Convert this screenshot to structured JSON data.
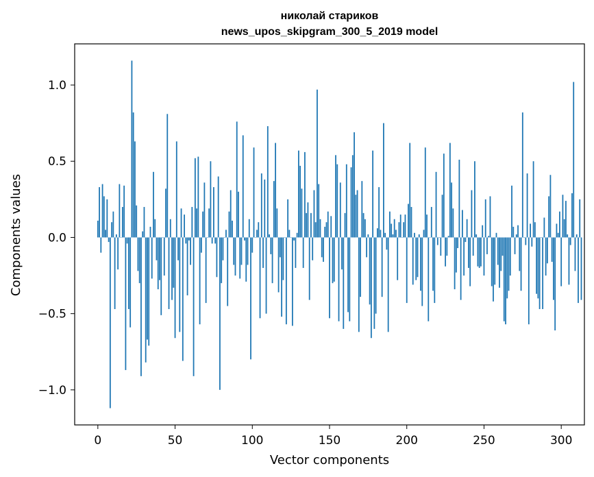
{
  "chart_data": {
    "type": "bar",
    "title": "николай стариков",
    "subtitle": "news_upos_skipgram_300_5_2019 model",
    "xlabel": "Vector components",
    "ylabel": "Components values",
    "xlim": [
      -15,
      315
    ],
    "ylim": [
      -1.23,
      1.27
    ],
    "xticks": [
      0,
      50,
      100,
      150,
      200,
      250,
      300
    ],
    "xtick_labels": [
      "0",
      "50",
      "100",
      "150",
      "200",
      "250",
      "300"
    ],
    "yticks": [
      -1.0,
      -0.5,
      0.0,
      0.5,
      1.0
    ],
    "ytick_labels": [
      "−1.0",
      "−0.5",
      "0.0",
      "0.5",
      "1.0"
    ],
    "grid": false,
    "bar_color": "#1f77b4",
    "values": [
      0.11,
      0.33,
      -0.1,
      0.35,
      0.27,
      0.05,
      0.25,
      -0.03,
      -1.12,
      0.1,
      0.17,
      -0.47,
      0.02,
      -0.21,
      0.35,
      0.0,
      0.2,
      0.34,
      -0.87,
      -0.04,
      -0.47,
      -0.59,
      1.16,
      0.82,
      0.63,
      0.21,
      -0.22,
      -0.3,
      -0.91,
      0.04,
      0.2,
      -0.82,
      -0.67,
      -0.71,
      0.07,
      -0.27,
      0.43,
      0.12,
      -0.15,
      -0.34,
      -0.28,
      -0.51,
      0.0,
      -0.25,
      0.32,
      0.81,
      -0.47,
      0.12,
      -0.41,
      -0.33,
      -0.66,
      0.63,
      -0.15,
      -0.62,
      0.19,
      -0.81,
      0.15,
      -0.04,
      -0.38,
      -0.02,
      -0.18,
      0.2,
      -0.91,
      0.52,
      0.19,
      0.53,
      -0.57,
      -0.1,
      0.17,
      0.36,
      -0.43,
      0.0,
      0.19,
      0.5,
      -0.04,
      0.33,
      -0.04,
      -0.26,
      0.4,
      -1.0,
      -0.3,
      -0.15,
      0.0,
      0.05,
      -0.45,
      0.17,
      0.31,
      0.11,
      -0.18,
      -0.25,
      0.76,
      0.3,
      -0.27,
      -0.18,
      0.67,
      -0.02,
      -0.29,
      -0.18,
      0.12,
      -0.8,
      -0.1,
      0.59,
      0.0,
      0.05,
      0.1,
      -0.53,
      0.42,
      -0.2,
      0.38,
      -0.5,
      0.73,
      0.02,
      -0.11,
      -0.3,
      0.37,
      0.62,
      0.19,
      -0.36,
      -0.13,
      -0.52,
      -0.28,
      0.0,
      -0.57,
      0.25,
      0.05,
      0.0,
      -0.58,
      -0.02,
      -0.2,
      0.03,
      0.57,
      0.47,
      0.32,
      -0.2,
      0.56,
      0.16,
      0.23,
      -0.41,
      0.16,
      -0.15,
      0.31,
      0.1,
      0.97,
      0.35,
      0.12,
      -0.13,
      -0.16,
      0.07,
      0.1,
      0.17,
      -0.53,
      0.14,
      -0.3,
      -0.29,
      0.54,
      0.48,
      -0.55,
      0.36,
      -0.21,
      -0.6,
      0.16,
      0.48,
      -0.49,
      -0.55,
      0.46,
      0.54,
      0.69,
      0.28,
      0.31,
      -0.62,
      -0.39,
      0.37,
      0.16,
      0.12,
      -0.13,
      0.02,
      -0.44,
      -0.66,
      0.57,
      -0.6,
      -0.5,
      0.06,
      0.33,
      0.05,
      -0.39,
      0.75,
      0.03,
      -0.08,
      -0.62,
      0.17,
      0.09,
      0.02,
      0.12,
      0.05,
      -0.28,
      0.1,
      0.15,
      0.0,
      0.1,
      0.15,
      -0.43,
      0.22,
      0.62,
      0.2,
      -0.31,
      0.03,
      -0.28,
      -0.26,
      0.02,
      -0.35,
      -0.45,
      0.05,
      0.59,
      0.15,
      -0.55,
      0.0,
      0.2,
      -0.35,
      -0.43,
      0.43,
      -0.05,
      0.0,
      -0.12,
      0.28,
      0.55,
      -0.19,
      -0.12,
      0.01,
      0.62,
      0.36,
      0.19,
      -0.34,
      -0.23,
      -0.07,
      0.51,
      -0.41,
      0.18,
      -0.25,
      -0.03,
      0.12,
      -0.2,
      -0.32,
      0.31,
      -0.12,
      0.5,
      0.02,
      -0.19,
      -0.2,
      -0.19,
      0.08,
      -0.25,
      0.25,
      -0.11,
      0.01,
      0.27,
      -0.32,
      -0.42,
      -0.31,
      0.03,
      -0.18,
      -0.33,
      -0.22,
      -0.12,
      -0.55,
      -0.57,
      -0.4,
      -0.35,
      -0.25,
      0.34,
      0.07,
      -0.11,
      0.02,
      0.08,
      -0.22,
      -0.35,
      0.82,
      0.0,
      -0.05,
      0.42,
      -0.57,
      0.09,
      -0.06,
      0.5,
      0.1,
      -0.37,
      -0.4,
      -0.47,
      0.0,
      -0.47,
      0.13,
      -0.25,
      -0.17,
      0.27,
      0.41,
      -0.16,
      -0.41,
      -0.61,
      0.09,
      0.03,
      0.17,
      -0.32,
      0.28,
      0.12,
      0.24,
      0.02,
      -0.31,
      -0.05,
      0.29,
      1.02,
      -0.22,
      0.02,
      -0.43,
      0.25,
      -0.41
    ]
  }
}
